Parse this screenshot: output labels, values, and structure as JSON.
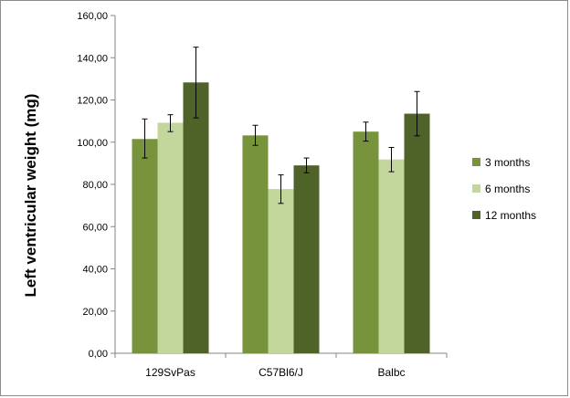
{
  "chart_data": {
    "type": "bar",
    "ylabel": "Left ventricular weight (mg)",
    "xlabel": "",
    "categories": [
      "129SvPas",
      "C57Bl6/J",
      "Balbc"
    ],
    "ylim": [
      0,
      160
    ],
    "y_ticks": [
      "0,00",
      "20,00",
      "40,00",
      "60,00",
      "80,00",
      "100,00",
      "120,00",
      "140,00",
      "160,00"
    ],
    "y_tick_values": [
      0,
      20,
      40,
      60,
      80,
      100,
      120,
      140,
      160
    ],
    "grid": false,
    "legend_position": "right",
    "series": [
      {
        "name": "3 months",
        "color": "#77933c",
        "values": [
          101.5,
          103.2,
          105.0
        ],
        "err_low": [
          92.5,
          98.5,
          100.5
        ],
        "err_high": [
          111.0,
          108.0,
          109.5
        ]
      },
      {
        "name": "6 months",
        "color": "#c3d69b",
        "values": [
          109.2,
          77.8,
          91.8
        ],
        "err_low": [
          105.0,
          71.0,
          86.0
        ],
        "err_high": [
          113.0,
          84.5,
          97.5
        ]
      },
      {
        "name": "12 months",
        "color": "#4f6228",
        "values": [
          128.3,
          89.0,
          113.5
        ],
        "err_low": [
          111.5,
          85.5,
          103.0
        ],
        "err_high": [
          145.0,
          92.5,
          124.0
        ]
      }
    ]
  }
}
